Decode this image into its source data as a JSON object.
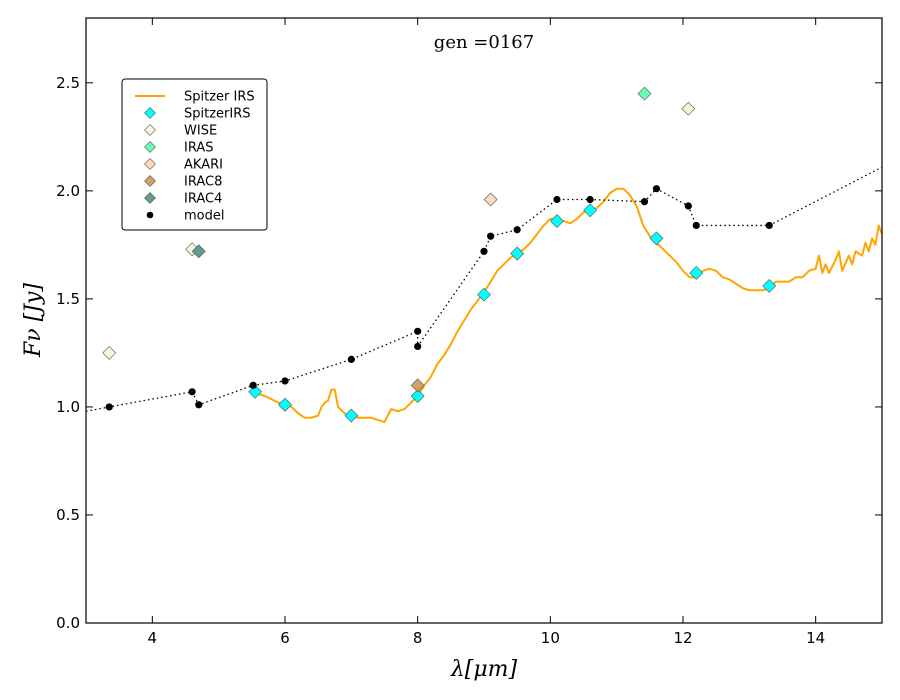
{
  "chart_data": {
    "type": "scatter",
    "title": "gen =0167",
    "xlabel": "λ[μm]",
    "ylabel": "Fν [Jy]",
    "xlim": [
      3,
      15
    ],
    "ylim": [
      0,
      2.8
    ],
    "xticks": [
      4,
      6,
      8,
      10,
      12,
      14
    ],
    "yticks": [
      0.0,
      0.5,
      1.0,
      1.5,
      2.0,
      2.5
    ],
    "xtick_labels": [
      "4",
      "6",
      "8",
      "10",
      "12",
      "14"
    ],
    "ytick_labels": [
      "0.0",
      "0.5",
      "1.0",
      "1.5",
      "2.0",
      "2.5"
    ],
    "legend_position": "upper-left",
    "series": [
      {
        "name": "Spitzer IRS",
        "kind": "line",
        "color": "#ffa500",
        "x": [
          5.5,
          5.7,
          5.9,
          6.0,
          6.1,
          6.2,
          6.3,
          6.4,
          6.5,
          6.55,
          6.6,
          6.65,
          6.7,
          6.75,
          6.8,
          6.9,
          7.0,
          7.1,
          7.2,
          7.3,
          7.4,
          7.5,
          7.6,
          7.7,
          7.8,
          7.9,
          8.0,
          8.1,
          8.2,
          8.3,
          8.4,
          8.5,
          8.6,
          8.7,
          8.8,
          8.9,
          9.0,
          9.1,
          9.2,
          9.3,
          9.4,
          9.5,
          9.6,
          9.7,
          9.8,
          9.9,
          10.0,
          10.1,
          10.2,
          10.3,
          10.4,
          10.5,
          10.6,
          10.7,
          10.8,
          10.9,
          11.0,
          11.1,
          11.2,
          11.3,
          11.4,
          11.5,
          11.6,
          11.7,
          11.8,
          11.9,
          12.0,
          12.1,
          12.2,
          12.3,
          12.4,
          12.5,
          12.6,
          12.7,
          12.8,
          12.9,
          13.0,
          13.1,
          13.2,
          13.3,
          13.4,
          13.5,
          13.6,
          13.7,
          13.8,
          13.9,
          14.0,
          14.05,
          14.1,
          14.15,
          14.2,
          14.3,
          14.35,
          14.4,
          14.5,
          14.55,
          14.6,
          14.7,
          14.75,
          14.8,
          14.85,
          14.9,
          14.95,
          15.0
        ],
        "y": [
          1.07,
          1.05,
          1.02,
          1.01,
          1.0,
          0.97,
          0.95,
          0.95,
          0.96,
          1.0,
          1.02,
          1.03,
          1.08,
          1.08,
          1.0,
          0.97,
          0.96,
          0.95,
          0.95,
          0.95,
          0.94,
          0.93,
          0.99,
          0.98,
          0.99,
          1.02,
          1.05,
          1.1,
          1.14,
          1.2,
          1.24,
          1.29,
          1.35,
          1.4,
          1.45,
          1.49,
          1.53,
          1.58,
          1.63,
          1.66,
          1.69,
          1.71,
          1.73,
          1.76,
          1.8,
          1.84,
          1.87,
          1.87,
          1.86,
          1.85,
          1.87,
          1.9,
          1.91,
          1.92,
          1.95,
          1.99,
          2.01,
          2.01,
          1.98,
          1.93,
          1.84,
          1.79,
          1.76,
          1.73,
          1.7,
          1.67,
          1.63,
          1.6,
          1.6,
          1.63,
          1.64,
          1.63,
          1.6,
          1.59,
          1.57,
          1.55,
          1.54,
          1.54,
          1.54,
          1.55,
          1.58,
          1.58,
          1.58,
          1.6,
          1.6,
          1.63,
          1.64,
          1.7,
          1.62,
          1.66,
          1.62,
          1.68,
          1.72,
          1.63,
          1.7,
          1.66,
          1.72,
          1.7,
          1.76,
          1.72,
          1.78,
          1.75,
          1.84,
          1.8
        ]
      },
      {
        "name": "SpitzerIRS",
        "kind": "marker",
        "marker": "diamond",
        "color": "#00ffff",
        "x": [
          5.55,
          6.0,
          7.0,
          8.0,
          9.0,
          9.5,
          10.1,
          10.6,
          11.6,
          12.2,
          13.3
        ],
        "y": [
          1.07,
          1.01,
          0.96,
          1.05,
          1.52,
          1.71,
          1.86,
          1.91,
          1.78,
          1.62,
          1.56
        ]
      },
      {
        "name": "WISE",
        "kind": "marker",
        "marker": "diamond",
        "color": "#f5f5dc",
        "x": [
          3.35,
          4.6,
          12.08
        ],
        "y": [
          1.25,
          1.73,
          2.38
        ]
      },
      {
        "name": "IRAS",
        "kind": "marker",
        "marker": "diamond",
        "color": "#66ffb2",
        "x": [
          11.42
        ],
        "y": [
          2.45
        ]
      },
      {
        "name": "AKARI",
        "kind": "marker",
        "marker": "diamond",
        "color": "#ffdab9",
        "x": [
          9.1
        ],
        "y": [
          1.96
        ]
      },
      {
        "name": "IRAC8",
        "kind": "marker",
        "marker": "diamond",
        "color": "#d2a06a",
        "x": [
          8.0
        ],
        "y": [
          1.1
        ]
      },
      {
        "name": "IRAC4",
        "kind": "marker",
        "marker": "diamond",
        "color": "#5f9e8f",
        "x": [
          4.7
        ],
        "y": [
          1.72
        ]
      },
      {
        "name": "model",
        "kind": "marker",
        "marker": "dot",
        "color": "#000000",
        "x": [
          3.35,
          4.6,
          4.7,
          5.52,
          6.0,
          7.0,
          8.0,
          8.0,
          9.0,
          9.1,
          9.5,
          10.1,
          10.6,
          11.42,
          11.6,
          12.08,
          12.2,
          13.3
        ],
        "y": [
          1.0,
          1.07,
          1.01,
          1.1,
          1.12,
          1.22,
          1.28,
          1.35,
          1.72,
          1.79,
          1.82,
          1.96,
          1.96,
          1.95,
          2.01,
          1.93,
          1.84,
          1.84
        ]
      },
      {
        "name": "model-curve",
        "kind": "dotted-line",
        "color": "#000000",
        "x": [
          3.0,
          3.35,
          4.6,
          4.7,
          5.52,
          6.0,
          7.0,
          8.0,
          8.0,
          9.0,
          9.1,
          9.5,
          10.1,
          10.6,
          11.42,
          11.6,
          12.08,
          12.2,
          13.3,
          15.0
        ],
        "y": [
          0.98,
          1.0,
          1.07,
          1.01,
          1.1,
          1.12,
          1.22,
          1.35,
          1.28,
          1.72,
          1.79,
          1.82,
          1.96,
          1.96,
          1.95,
          2.01,
          1.93,
          1.84,
          1.84,
          2.11
        ]
      }
    ],
    "legend": [
      "Spitzer IRS",
      "SpitzerIRS",
      "WISE",
      "IRAS",
      "AKARI",
      "IRAC8",
      "IRAC4",
      "model"
    ]
  }
}
